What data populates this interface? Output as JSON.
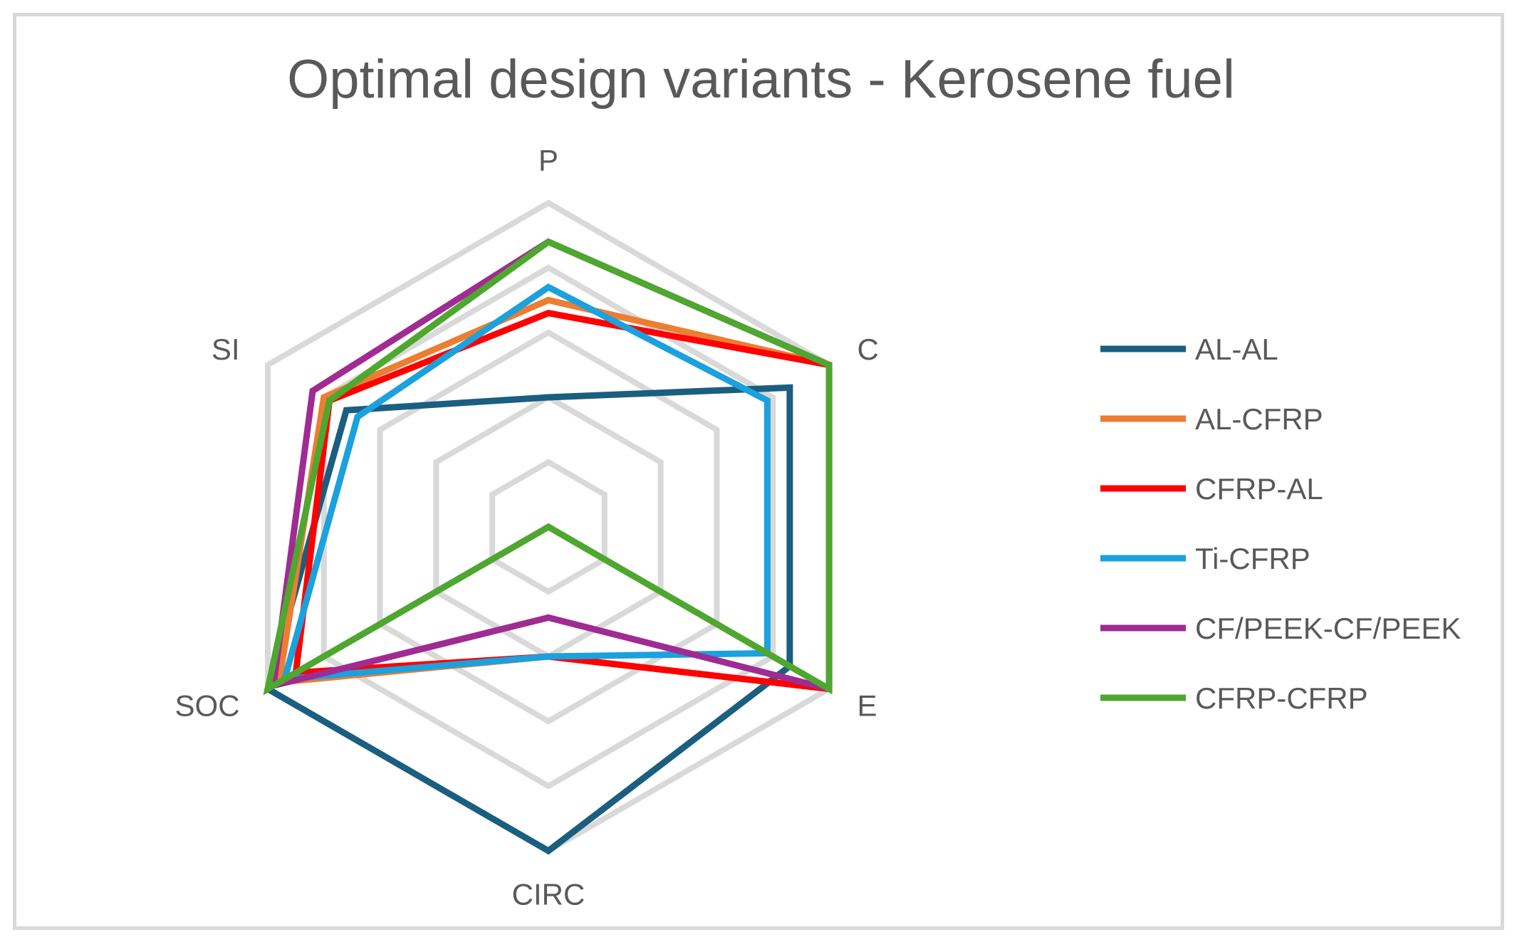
{
  "chart_data": {
    "type": "radar",
    "title": "Optimal design variants - Kerosene fuel",
    "axes": [
      "P",
      "C",
      "E",
      "CIRC",
      "SOC",
      "SI"
    ],
    "rmax": 5,
    "rings": [
      1,
      2,
      3,
      4,
      5
    ],
    "legend_position": "right",
    "series": [
      {
        "name": "AL-AL",
        "color": "#1a5e80",
        "values": [
          2.0,
          4.3,
          4.3,
          5.0,
          5.0,
          3.6
        ]
      },
      {
        "name": "AL-CFRP",
        "color": "#ed7d31",
        "values": [
          3.5,
          5.0,
          5.0,
          2.0,
          4.8,
          4.0
        ]
      },
      {
        "name": "CFRP-AL",
        "color": "#ff0000",
        "values": [
          3.3,
          5.0,
          5.0,
          2.0,
          4.5,
          3.9
        ]
      },
      {
        "name": "Ti-CFRP",
        "color": "#1ba1dd",
        "values": [
          3.7,
          3.9,
          3.9,
          2.0,
          4.7,
          3.4
        ]
      },
      {
        "name": "CF/PEEK-CF/PEEK",
        "color": "#a02b93",
        "values": [
          4.4,
          5.0,
          5.0,
          1.4,
          4.9,
          4.2
        ]
      },
      {
        "name": "CFRP-CFRP",
        "color": "#4ea72e",
        "values": [
          4.4,
          5.0,
          5.0,
          0.0,
          5.0,
          3.9
        ]
      }
    ]
  }
}
